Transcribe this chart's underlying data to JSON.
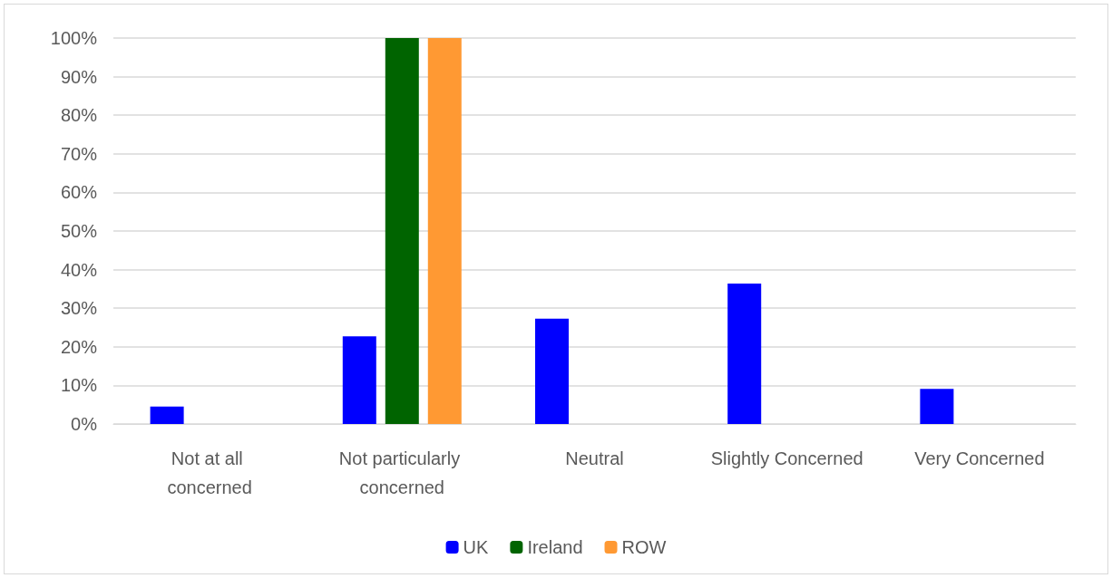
{
  "chart_data": {
    "type": "bar",
    "categories": [
      "Not at all concerned",
      "Not particularly concerned",
      "Neutral",
      "Slightly Concerned",
      "Very Concerned"
    ],
    "series": [
      {
        "name": "UK",
        "color": "#0000ff",
        "values": [
          4.5,
          22.7,
          27.3,
          36.4,
          9.1
        ]
      },
      {
        "name": "Ireland",
        "color": "#006400",
        "values": [
          0,
          100,
          0,
          0,
          0
        ]
      },
      {
        "name": "ROW",
        "color": "#ff9933",
        "values": [
          0,
          100,
          0,
          0,
          0
        ]
      }
    ],
    "ylim": [
      0,
      100
    ],
    "yticks": [
      {
        "value": 0,
        "label": "0%"
      },
      {
        "value": 10,
        "label": "10%"
      },
      {
        "value": 20,
        "label": "20%"
      },
      {
        "value": 30,
        "label": "30%"
      },
      {
        "value": 40,
        "label": "40%"
      },
      {
        "value": 50,
        "label": "50%"
      },
      {
        "value": 60,
        "label": "60%"
      },
      {
        "value": 70,
        "label": "70%"
      },
      {
        "value": 80,
        "label": "80%"
      },
      {
        "value": 90,
        "label": "90%"
      },
      {
        "value": 100,
        "label": "100%"
      }
    ],
    "grid": true,
    "legend": "bottom"
  }
}
